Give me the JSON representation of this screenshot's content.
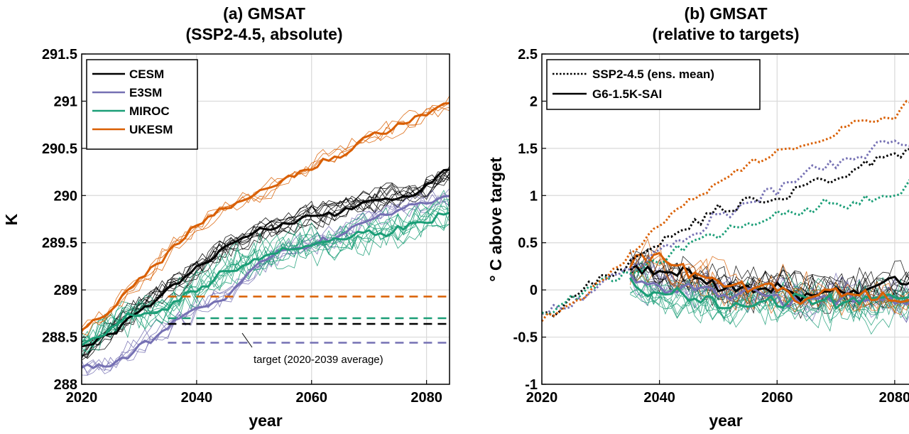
{
  "chart_data": [
    {
      "type": "line",
      "title": "(a) GMSAT",
      "subtitle": "(SSP2-4.5, absolute)",
      "xlabel": "year",
      "ylabel": "K",
      "xlim": [
        2020,
        2084
      ],
      "ylim": [
        288,
        291.5
      ],
      "xticks": [
        "2020",
        "2040",
        "2060",
        "2080"
      ],
      "yticks": [
        "288",
        "288.5",
        "289",
        "289.5",
        "290",
        "290.5",
        "291",
        "291.5"
      ],
      "grid": true,
      "legend_position": "top-left",
      "annotation": "target (2020-2039 average)",
      "series": [
        {
          "name": "CESM",
          "color": "#000000",
          "x": [
            2020,
            2025,
            2030,
            2035,
            2040,
            2045,
            2050,
            2055,
            2060,
            2065,
            2070,
            2075,
            2080,
            2084
          ],
          "values": [
            288.35,
            288.55,
            288.8,
            289.0,
            289.2,
            289.45,
            289.6,
            289.65,
            289.8,
            289.85,
            289.95,
            290.0,
            290.1,
            290.25
          ],
          "target": 288.64
        },
        {
          "name": "E3SM",
          "color": "#7570b3",
          "x": [
            2020,
            2025,
            2030,
            2035,
            2040,
            2045,
            2050,
            2055,
            2060,
            2065,
            2070,
            2075,
            2080,
            2084
          ],
          "values": [
            288.2,
            288.2,
            288.4,
            288.6,
            288.8,
            288.9,
            289.2,
            289.4,
            289.5,
            289.6,
            289.75,
            289.85,
            289.95,
            290.0
          ],
          "target": 288.44
        },
        {
          "name": "MIROC",
          "color": "#1b9e77",
          "x": [
            2020,
            2025,
            2030,
            2035,
            2040,
            2045,
            2050,
            2055,
            2060,
            2065,
            2070,
            2075,
            2080,
            2084
          ],
          "values": [
            288.4,
            288.6,
            288.75,
            288.85,
            289.0,
            289.2,
            289.35,
            289.45,
            289.5,
            289.55,
            289.6,
            289.65,
            289.75,
            289.85
          ],
          "target": 288.7
        },
        {
          "name": "UKESM",
          "color": "#d95f02",
          "x": [
            2020,
            2025,
            2030,
            2035,
            2040,
            2045,
            2050,
            2055,
            2060,
            2065,
            2070,
            2075,
            2080,
            2084
          ],
          "values": [
            288.55,
            288.75,
            289.1,
            289.4,
            289.65,
            289.85,
            290.0,
            290.15,
            290.3,
            290.45,
            290.6,
            290.75,
            290.85,
            290.95
          ],
          "target": 288.93
        }
      ]
    },
    {
      "type": "line",
      "title": "(b) GMSAT",
      "subtitle": "(relative to targets)",
      "xlabel": "year",
      "ylabel": "° C above target",
      "xlim": [
        2020,
        2084
      ],
      "ylim": [
        -1,
        2.5
      ],
      "xticks": [
        "2020",
        "2040",
        "2060",
        "2080"
      ],
      "yticks": [
        "-1",
        "-0.5",
        "0",
        "0.5",
        "1",
        "1.5",
        "2",
        "2.5"
      ],
      "grid": true,
      "legend_position": "top-left",
      "legend": [
        "SSP2-4.5 (ens. mean)",
        "G6-1.5K-SAI"
      ],
      "ssp245_ens_mean": [
        {
          "model": "CESM",
          "color": "#000000",
          "x": [
            2020,
            2025,
            2030,
            2035,
            2040,
            2045,
            2050,
            2055,
            2060,
            2065,
            2070,
            2075,
            2080,
            2084
          ],
          "values": [
            -0.3,
            -0.1,
            0.1,
            0.3,
            0.5,
            0.7,
            0.85,
            0.9,
            1.0,
            1.1,
            1.2,
            1.3,
            1.45,
            1.55
          ]
        },
        {
          "model": "E3SM",
          "color": "#7570b3",
          "x": [
            2020,
            2025,
            2030,
            2035,
            2040,
            2045,
            2050,
            2055,
            2060,
            2065,
            2070,
            2075,
            2080,
            2084
          ],
          "values": [
            -0.2,
            -0.15,
            0.05,
            0.25,
            0.4,
            0.6,
            0.8,
            0.9,
            1.05,
            1.2,
            1.35,
            1.45,
            1.55,
            1.5
          ]
        },
        {
          "model": "MIROC",
          "color": "#1b9e77",
          "x": [
            2020,
            2025,
            2030,
            2035,
            2040,
            2045,
            2050,
            2055,
            2060,
            2065,
            2070,
            2075,
            2080,
            2084
          ],
          "values": [
            -0.3,
            -0.1,
            0.05,
            0.2,
            0.35,
            0.5,
            0.6,
            0.7,
            0.75,
            0.85,
            0.9,
            0.95,
            1.05,
            1.2
          ]
        },
        {
          "model": "UKESM",
          "color": "#d95f02",
          "x": [
            2020,
            2025,
            2030,
            2035,
            2040,
            2045,
            2050,
            2055,
            2060,
            2065,
            2070,
            2075,
            2080,
            2084
          ],
          "values": [
            -0.35,
            -0.15,
            0.1,
            0.4,
            0.75,
            1.0,
            1.15,
            1.3,
            1.45,
            1.55,
            1.65,
            1.8,
            1.9,
            2.0
          ]
        }
      ],
      "g6_sai": [
        {
          "model": "CESM",
          "color": "#000000",
          "x": [
            2035,
            2040,
            2045,
            2050,
            2055,
            2060,
            2065,
            2070,
            2075,
            2080,
            2084
          ],
          "values": [
            0.25,
            0.2,
            0.15,
            0.05,
            0.0,
            0.0,
            -0.05,
            0.0,
            0.0,
            0.05,
            0.05
          ]
        },
        {
          "model": "E3SM",
          "color": "#7570b3",
          "x": [
            2035,
            2040,
            2045,
            2050,
            2055,
            2060,
            2065,
            2070,
            2075,
            2080,
            2084
          ],
          "values": [
            0.2,
            0.1,
            0.05,
            -0.05,
            -0.1,
            -0.05,
            -0.1,
            -0.05,
            -0.1,
            -0.1,
            -0.15
          ]
        },
        {
          "model": "MIROC",
          "color": "#1b9e77",
          "x": [
            2035,
            2040,
            2045,
            2050,
            2055,
            2060,
            2065,
            2070,
            2075,
            2080,
            2084
          ],
          "values": [
            0.1,
            -0.05,
            -0.1,
            -0.15,
            -0.1,
            -0.15,
            -0.1,
            -0.15,
            -0.15,
            -0.1,
            -0.15
          ]
        },
        {
          "model": "UKESM",
          "color": "#d95f02",
          "x": [
            2035,
            2040,
            2045,
            2050,
            2055,
            2060,
            2065,
            2070,
            2075,
            2080,
            2084
          ],
          "values": [
            0.25,
            0.35,
            0.15,
            0.05,
            -0.05,
            0.0,
            -0.05,
            0.0,
            -0.1,
            -0.1,
            -0.15
          ]
        }
      ]
    }
  ]
}
